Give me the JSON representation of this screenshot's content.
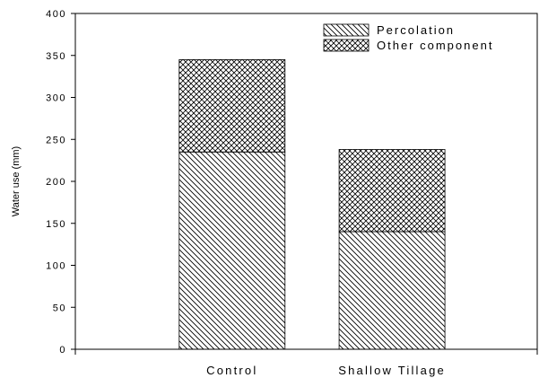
{
  "chart_data": {
    "type": "bar",
    "stacked": true,
    "title": "",
    "xlabel": "",
    "ylabel": "Water use (mm)",
    "categories": [
      "Control",
      "Shallow Tillage"
    ],
    "series": [
      {
        "name": "Percolation",
        "values": [
          235,
          140
        ],
        "pattern": "diagonal-hatch"
      },
      {
        "name": "Other component",
        "values": [
          110,
          98
        ],
        "pattern": "crosshatch"
      }
    ],
    "ylim": [
      0,
      400
    ],
    "yticks": [
      0,
      50,
      100,
      150,
      200,
      250,
      300,
      350,
      400
    ],
    "grid": false,
    "legend_position": "top-right"
  }
}
